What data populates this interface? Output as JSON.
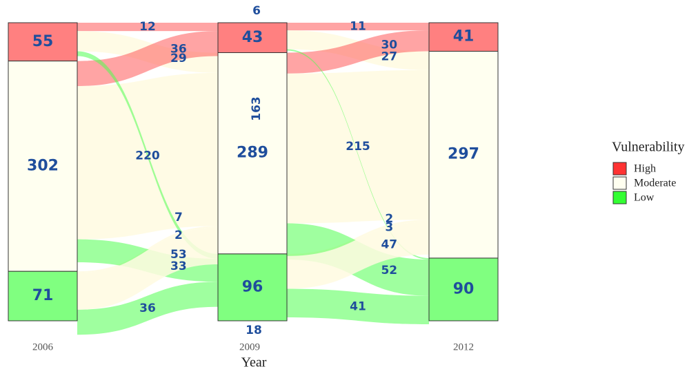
{
  "chart_data": {
    "type": "alluvial",
    "xlabel": "Year",
    "axes": [
      "2006",
      "2009",
      "2012"
    ],
    "categories": [
      "High",
      "Moderate",
      "Low"
    ],
    "colors": {
      "High": "#ff4d4d",
      "Moderate": "#fffff0",
      "Low": "#4dff4d"
    },
    "nodes": [
      {
        "axis": "2006",
        "High": 55,
        "Moderate": 302,
        "Low": 71
      },
      {
        "axis": "2009",
        "High": 43,
        "Moderate": 289,
        "Low": 96
      },
      {
        "axis": "2012",
        "High": 41,
        "Moderate": 297,
        "Low": 90
      }
    ],
    "flows": [
      {
        "from_axis": "2006",
        "to_axis": "2009",
        "from": "High",
        "to": "High",
        "value": 12
      },
      {
        "from_axis": "2006",
        "to_axis": "2009",
        "from": "High",
        "to": "Moderate",
        "value": 29
      },
      {
        "from_axis": "2006",
        "to_axis": "2009",
        "from": "Moderate",
        "to": "High",
        "value": 36
      },
      {
        "from_axis": "2006",
        "to_axis": "2009",
        "from": "Moderate",
        "to": "Moderate",
        "value": 220
      },
      {
        "from_axis": "2006",
        "to_axis": "2009",
        "from": "Low",
        "to": "Moderate",
        "value": 2
      },
      {
        "from_axis": "2006",
        "to_axis": "2009",
        "from": "High",
        "to": "Low",
        "value": 7
      },
      {
        "from_axis": "2006",
        "to_axis": "2009",
        "from": "Moderate",
        "to": "Low",
        "value": 33
      },
      {
        "from_axis": "2006",
        "to_axis": "2009",
        "from": "Low",
        "to": "Moderate",
        "value": 53
      },
      {
        "from_axis": "2006",
        "to_axis": "2009",
        "from": "Low",
        "to": "Low",
        "value": 36
      },
      {
        "from_axis": "2009",
        "to_axis": "2012",
        "from": "High",
        "to": "High",
        "value": 11
      },
      {
        "from_axis": "2009",
        "to_axis": "2012",
        "from": "High",
        "to": "Moderate",
        "value": 27
      },
      {
        "from_axis": "2009",
        "to_axis": "2012",
        "from": "Moderate",
        "to": "High",
        "value": 30
      },
      {
        "from_axis": "2009",
        "to_axis": "2012",
        "from": "Moderate",
        "to": "Moderate",
        "value": 215
      },
      {
        "from_axis": "2009",
        "to_axis": "2012",
        "from": "Low",
        "to": "Moderate",
        "value": 3
      },
      {
        "from_axis": "2009",
        "to_axis": "2012",
        "from": "High",
        "to": "Low",
        "value": 2
      },
      {
        "from_axis": "2009",
        "to_axis": "2012",
        "from": "Moderate",
        "to": "Low",
        "value": 52
      },
      {
        "from_axis": "2009",
        "to_axis": "2012",
        "from": "Low",
        "to": "Moderate",
        "value": 47
      },
      {
        "from_axis": "2009",
        "to_axis": "2012",
        "from": "Low",
        "to": "Low",
        "value": 41
      }
    ],
    "extra_labels": [
      "6",
      "163",
      "18"
    ],
    "legend": {
      "title": "Vulnerability",
      "placement": "right",
      "entries": [
        "High",
        "Moderate",
        "Low"
      ]
    }
  }
}
